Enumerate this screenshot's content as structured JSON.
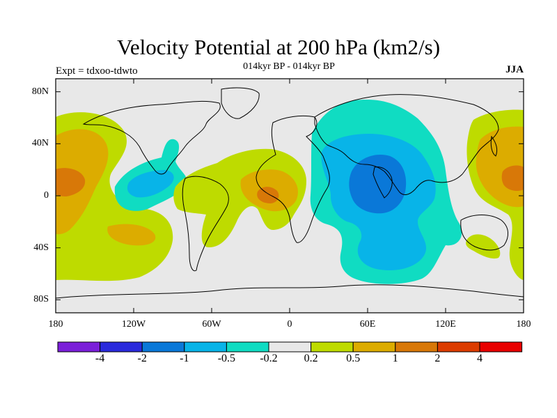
{
  "title": "Velocity Potential at 200 hPa (km2/s)",
  "subtitle_center": "014kyr BP - 014kyr BP",
  "subtitle_left": "Expt = tdxoo-tdwto",
  "subtitle_right": "JJA",
  "lat_ticks": [
    "80N",
    "40N",
    "0",
    "40S",
    "80S"
  ],
  "lon_ticks": [
    "180",
    "120W",
    "60W",
    "0",
    "60E",
    "120E",
    "180"
  ],
  "colorbar": {
    "labels": [
      "-4",
      "-2",
      "-1",
      "-0.5",
      "-0.2",
      "0.2",
      "0.5",
      "1",
      "2",
      "4"
    ],
    "colors": [
      "#7b1fd9",
      "#2a2adc",
      "#0a78d8",
      "#08b4e8",
      "#10dcc2",
      "#e8e8e8",
      "#bedb00",
      "#dcac00",
      "#d87808",
      "#dc3c00",
      "#e80000"
    ]
  },
  "chart_data": {
    "type": "filled-contour-map",
    "variable": "Velocity Potential at 200 hPa",
    "units": "km2/s",
    "season": "JJA",
    "projection": "cylindrical equidistant",
    "lon_range": [
      -180,
      180
    ],
    "lat_range": [
      -90,
      90
    ],
    "contour_levels": [
      -4,
      -2,
      -1,
      -0.5,
      -0.2,
      0.2,
      0.5,
      1,
      2,
      4
    ],
    "features": [
      {
        "region": "Indian Ocean / South Asia",
        "sign": "negative",
        "min_level": -1
      },
      {
        "region": "Eastern tropical Pacific / Central America",
        "sign": "negative",
        "min_level": -0.5
      },
      {
        "region": "Central Pacific (near dateline)",
        "sign": "positive",
        "max_level": 1
      },
      {
        "region": "Tropical Atlantic / West Africa",
        "sign": "positive",
        "max_level": 1
      },
      {
        "region": "Western North Pacific",
        "sign": "positive",
        "max_level": 1
      },
      {
        "region": "South Pacific",
        "sign": "positive",
        "max_level": 0.5
      }
    ]
  }
}
